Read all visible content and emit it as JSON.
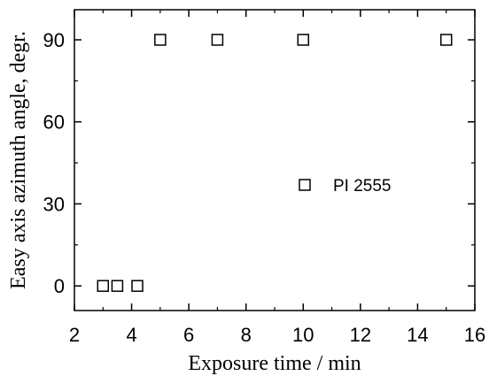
{
  "chart_data": {
    "type": "scatter",
    "xlabel": "Exposure time / min",
    "ylabel": "Easy axis azimuth angle, degr.",
    "xlim": [
      2,
      16
    ],
    "ylim": [
      -9,
      101
    ],
    "x_ticks": [
      2,
      4,
      6,
      8,
      10,
      12,
      14,
      16
    ],
    "x_tick_labels": [
      "2",
      "4",
      "6",
      "8",
      "10",
      "12",
      "14",
      "16"
    ],
    "y_ticks": [
      0,
      30,
      60,
      90
    ],
    "y_tick_labels": [
      "0",
      "30",
      "60",
      "90"
    ],
    "grid": false,
    "legend_position": "right",
    "series": [
      {
        "name": "PI 2555",
        "marker": "open-square",
        "color": "#000000",
        "x": [
          3.0,
          3.5,
          4.2,
          5.0,
          7.0,
          10.0,
          15.0
        ],
        "y": [
          0,
          0,
          0,
          90,
          90,
          90,
          90
        ]
      }
    ]
  }
}
